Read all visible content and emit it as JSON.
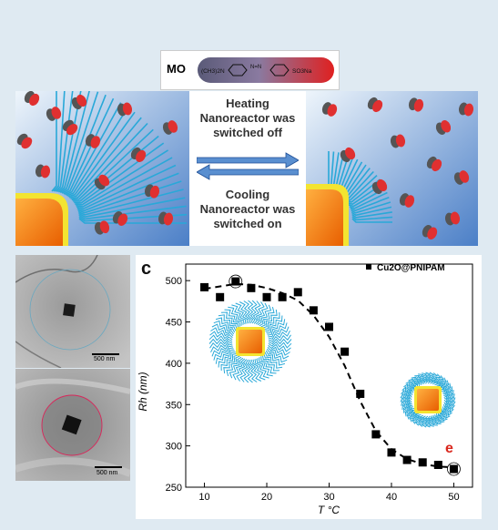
{
  "figure": {
    "mo_label": "MO",
    "mo_formula": {
      "left_group": "(CH3)2N",
      "azo": "N=N",
      "right_group": "SO3Na"
    },
    "heating_line1": "Heating",
    "heating_line2": "Nanoreactor was",
    "heating_line3": "switched off",
    "cooling_line1": "Cooling",
    "cooling_line2": "Nanoreactor was",
    "cooling_line3": "switched on",
    "scale_bar_top": "500 nm",
    "scale_bar_bottom": "500 nm",
    "panel_letter": "c",
    "marker_letter": "e",
    "colors": {
      "brush": "#29a8d8",
      "core": "#f07a00",
      "shell": "#f3e431",
      "marker_e": "#d9261c",
      "sky": "#5b8fd0"
    }
  },
  "chart_data": {
    "type": "scatter",
    "xlabel": "T °C",
    "ylabel": "Rh (nm)",
    "xlim": [
      7,
      53
    ],
    "ylim": [
      250,
      520
    ],
    "xticks": [
      10,
      20,
      30,
      40,
      50
    ],
    "yticks": [
      250,
      300,
      350,
      400,
      450,
      500
    ],
    "series": [
      {
        "name": "Cu2O@PNIPAM",
        "x": [
          10,
          12.5,
          15,
          17.5,
          20,
          22.5,
          25,
          27.5,
          30,
          32.5,
          35,
          37.5,
          40,
          42.5,
          45,
          47.5,
          50
        ],
        "y": [
          492,
          480,
          499,
          491,
          480,
          480,
          486,
          464,
          444,
          414,
          363,
          314,
          292,
          283,
          280,
          277,
          272
        ]
      }
    ],
    "fit_curve": {
      "x": [
        10,
        12.5,
        15,
        17.5,
        20,
        22.5,
        25,
        27.5,
        30,
        32.5,
        35,
        37.5,
        40,
        42.5,
        45,
        47.5,
        50
      ],
      "y": [
        490,
        493,
        496,
        495,
        491,
        485,
        476,
        458,
        432,
        397,
        354,
        318,
        296,
        284,
        278,
        275,
        274
      ]
    },
    "highlighted_points_x": [
      15,
      50
    ],
    "legend_position": "top-right"
  }
}
